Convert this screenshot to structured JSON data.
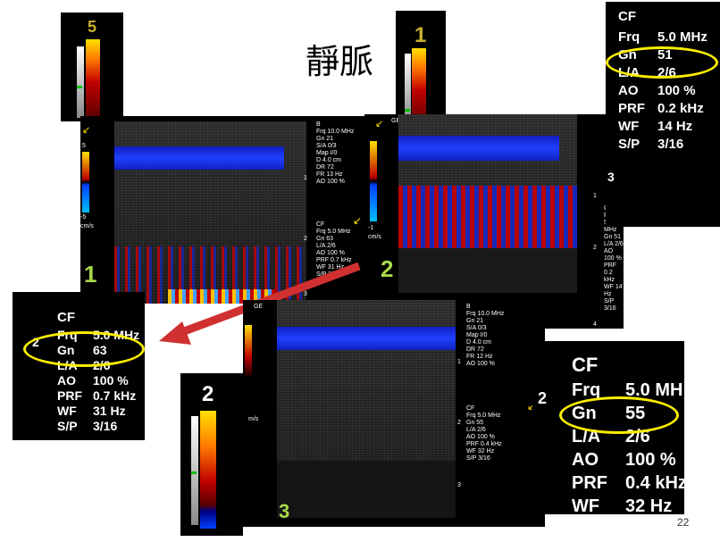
{
  "title": "靜脈",
  "page_number": "22",
  "panels": [
    {
      "label": "1",
      "scale_top": "5",
      "scale_bottom": "-5",
      "scale_unit": "cm/s"
    },
    {
      "label": "2",
      "scale_top": "1",
      "scale_bottom": "-1",
      "scale_unit": "cm/s"
    },
    {
      "label": "3",
      "scale_top": "2",
      "scale_unit": "m/s"
    }
  ],
  "inset_scale_5": "5",
  "inset_scale_1": "1",
  "inset_scale_2": "2",
  "b_params": {
    "mode": "B",
    "rows": [
      "Frq 10.0 MHz",
      "Gn 21",
      "S/A 0/3",
      "Map I/0",
      "D 4.0 cm",
      "DR 72",
      "FR 13 Hz",
      "AO 100 %"
    ]
  },
  "b_params_3": {
    "rows": [
      "Frq 10.0 MHz",
      "Gn 21",
      "S/A 0/3",
      "Map I/0",
      "D 4.0 cm",
      "DR 72",
      "FR 12 Hz",
      "AO 100 %"
    ]
  },
  "cf_panel1": {
    "mode": "CF",
    "rows": [
      "Frq 5.0 MHz",
      "Gn 63",
      "L/A 2/6",
      "AO 100 %",
      "PRF 0.7 kHz",
      "WF 31 Hz",
      "S/P 3/16"
    ]
  },
  "cf_panel2": {
    "mode": "CF",
    "rows": [
      "Frq 5.0 MHz",
      "Gn 51",
      "L/A 2/6",
      "AO 100 %",
      "PRF 0.2 kHz",
      "WF 14 Hz",
      "S/P 3/16"
    ]
  },
  "cf_panel3": {
    "mode": "CF",
    "rows": [
      "Frq 5.0 MHz",
      "Gn 55",
      "L/A 2/6",
      "AO 100 %",
      "PRF 0.4 kHz",
      "WF 32 Hz",
      "S/P 3/16"
    ]
  },
  "zoom_top_right": {
    "mode": "CF",
    "frq_k": "Frq",
    "frq_v": "5.0 MHz",
    "gn_k": "Gn",
    "gn_v": "51",
    "la_k": "L/A",
    "la_v": "2/6",
    "ao_k": "AO",
    "ao_v": "100 %",
    "prf_k": "PRF",
    "prf_v": "0.2 kHz",
    "wf_k": "WF",
    "wf_v": "14 Hz",
    "sp_k": "S/P",
    "sp_v": "3/16",
    "depth": "3"
  },
  "zoom_left": {
    "mode": "CF",
    "frq_k": "Frq",
    "frq_v": "5.0 MHz",
    "gn_k": "Gn",
    "gn_v": "63",
    "la_k": "L/A",
    "la_v": "2/6",
    "ao_k": "AO",
    "ao_v": "100 %",
    "prf_k": "PRF",
    "prf_v": "0.7 kHz",
    "wf_k": "WF",
    "wf_v": "31 Hz",
    "sp_k": "S/P",
    "sp_v": "3/16",
    "depth": "2"
  },
  "zoom_bottom_right": {
    "mode": "CF",
    "frq_k": "Frq",
    "frq_v": "5.0 MH",
    "gn_k": "Gn",
    "gn_v": "55",
    "la_k": "L/A",
    "la_v": "2/6",
    "ao_k": "AO",
    "ao_v": "100 %",
    "prf_k": "PRF",
    "prf_v": "0.4 kHz",
    "wf_k": "WF",
    "wf_v": "32 Hz",
    "depth": "2"
  },
  "depth_marks": [
    "1",
    "2",
    "3",
    "4"
  ],
  "ge_logo": "GE"
}
